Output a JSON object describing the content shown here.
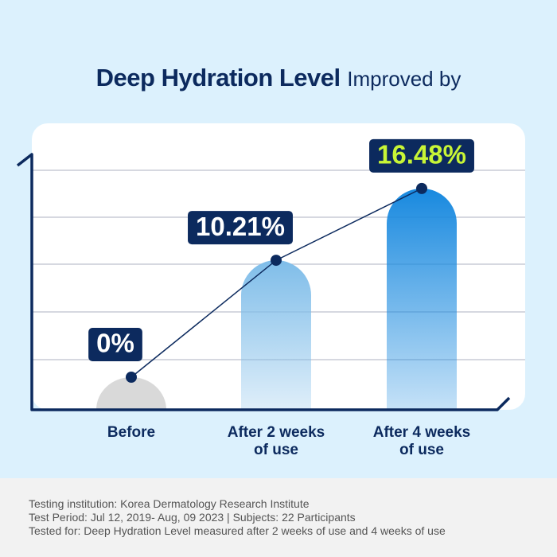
{
  "chart_data": {
    "type": "bar",
    "title": "Deep Hydration Level",
    "title_suffix": "Improved by",
    "categories": [
      "Before",
      "After 2 weeks\nof use",
      "After 4 weeks\nof use"
    ],
    "values": [
      0,
      10.21,
      16.48
    ],
    "value_labels": [
      "0%",
      "10.21%",
      "16.48%"
    ],
    "colors": [
      "#d9d9d9",
      "#7fbde9",
      "#1889df"
    ],
    "label_text_colors": [
      "#ffffff",
      "#ffffff",
      "#c8f536"
    ],
    "line_color": "#0c2a5e",
    "ylim": [
      0,
      18
    ]
  },
  "footnote": [
    "Testing institution: Korea Dermatology Research Institute",
    "Test Period: Jul 12, 2019- Aug, 09 2023  |  Subjects: 22 Participants",
    "Tested for: Deep Hydration Level measured after 2 weeks of use and 4 weeks of use"
  ]
}
